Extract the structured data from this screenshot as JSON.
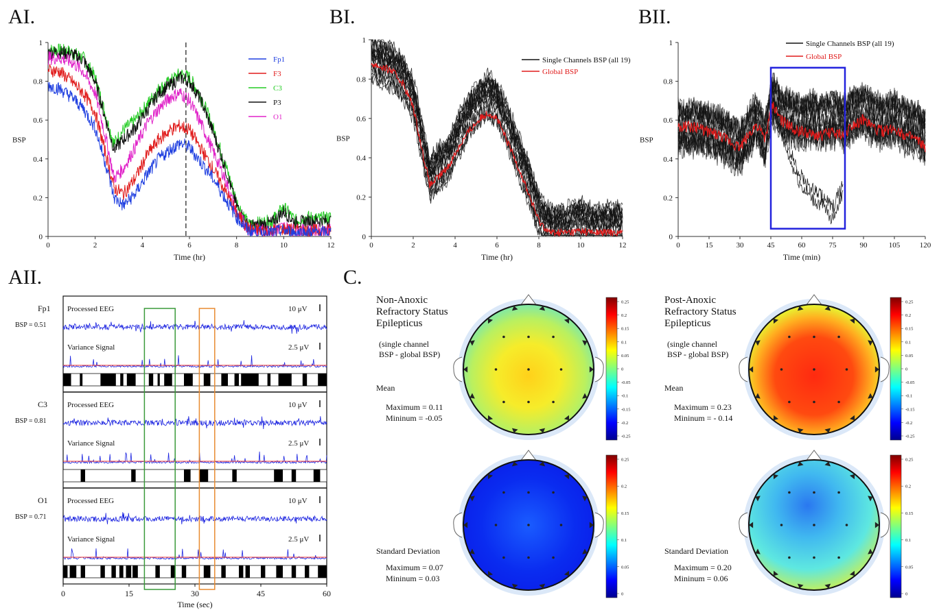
{
  "panel_labels": {
    "ai": "AI.",
    "bi": "BI.",
    "bii": "BII.",
    "aii": "AII.",
    "c": "C."
  },
  "chart_data": [
    {
      "id": "AI",
      "type": "line",
      "xlabel": "Time (hr)",
      "ylabel": "BSP",
      "xlim": [
        0,
        12
      ],
      "ylim": [
        0,
        1
      ],
      "xticks": [
        0,
        2,
        4,
        6,
        8,
        10,
        12
      ],
      "yticks": [
        0,
        0.2,
        0.4,
        0.6,
        0.8,
        1
      ],
      "xtick_labels": [
        "0",
        "2",
        "4",
        "6",
        "8",
        "10",
        "12"
      ],
      "ytick_labels": [
        "0",
        "0.2",
        "0.4",
        "0.6",
        "0.8",
        "1"
      ],
      "vline_x": 5.85,
      "legend": "top-right",
      "x": [
        0,
        0.5,
        1,
        1.5,
        2,
        2.5,
        2.8,
        3.2,
        3.7,
        4.2,
        4.7,
        5.2,
        5.6,
        6.0,
        6.5,
        7.0,
        7.5,
        8.0,
        8.5,
        9.0,
        9.5,
        10.0,
        10.5,
        11.0,
        11.5,
        12.0
      ],
      "series": [
        {
          "name": "Fp1",
          "color": "#1f3fe0",
          "values": [
            0.78,
            0.76,
            0.72,
            0.66,
            0.56,
            0.35,
            0.2,
            0.16,
            0.22,
            0.32,
            0.4,
            0.45,
            0.48,
            0.46,
            0.38,
            0.3,
            0.2,
            0.1,
            0.03,
            0.02,
            0.02,
            0.03,
            0.02,
            0.02,
            0.02,
            0.02
          ]
        },
        {
          "name": "F3",
          "color": "#e01a1a",
          "values": [
            0.86,
            0.85,
            0.8,
            0.74,
            0.64,
            0.4,
            0.25,
            0.22,
            0.3,
            0.42,
            0.5,
            0.55,
            0.57,
            0.55,
            0.45,
            0.35,
            0.24,
            0.12,
            0.04,
            0.03,
            0.03,
            0.04,
            0.03,
            0.03,
            0.03,
            0.03
          ]
        },
        {
          "name": "C3",
          "color": "#22cc22",
          "values": [
            0.96,
            0.96,
            0.95,
            0.92,
            0.82,
            0.6,
            0.48,
            0.55,
            0.6,
            0.68,
            0.76,
            0.8,
            0.84,
            0.82,
            0.72,
            0.56,
            0.38,
            0.18,
            0.06,
            0.07,
            0.08,
            0.15,
            0.08,
            0.1,
            0.09,
            0.1
          ]
        },
        {
          "name": "P3",
          "color": "#111111",
          "values": [
            0.95,
            0.95,
            0.94,
            0.91,
            0.8,
            0.58,
            0.45,
            0.5,
            0.56,
            0.65,
            0.74,
            0.78,
            0.82,
            0.8,
            0.7,
            0.54,
            0.36,
            0.16,
            0.05,
            0.06,
            0.07,
            0.13,
            0.07,
            0.08,
            0.08,
            0.08
          ]
        },
        {
          "name": "O1",
          "color": "#e022c8",
          "values": [
            0.92,
            0.92,
            0.9,
            0.85,
            0.74,
            0.48,
            0.3,
            0.35,
            0.46,
            0.58,
            0.66,
            0.72,
            0.74,
            0.7,
            0.58,
            0.44,
            0.3,
            0.12,
            0.04,
            0.03,
            0.03,
            0.05,
            0.03,
            0.03,
            0.03,
            0.03
          ]
        }
      ]
    },
    {
      "id": "BI",
      "type": "line",
      "xlabel": "Time (hr)",
      "ylabel": "BSP",
      "xlim": [
        0,
        12
      ],
      "ylim": [
        0,
        1
      ],
      "xticks": [
        0,
        2,
        4,
        6,
        8,
        10,
        12
      ],
      "yticks": [
        0,
        0.2,
        0.4,
        0.6,
        0.8,
        1
      ],
      "xtick_labels": [
        "0",
        "2",
        "4",
        "6",
        "8",
        "10",
        "12"
      ],
      "ytick_labels": [
        "0",
        "0.2",
        "0.4",
        "0.6",
        "0.8",
        "1"
      ],
      "legend": "top-right",
      "x": [
        0,
        0.5,
        1,
        1.5,
        2,
        2.5,
        2.8,
        3.2,
        3.7,
        4.2,
        4.7,
        5.2,
        5.6,
        6.0,
        6.5,
        7.0,
        7.5,
        8.0,
        8.5,
        9.0,
        9.5,
        10.0,
        10.5,
        11.0,
        11.5,
        12.0
      ],
      "series": [
        {
          "name": "Single Channels BSP (all 19)",
          "color": "#111111",
          "values": [
            0.9,
            0.88,
            0.86,
            0.8,
            0.7,
            0.45,
            0.3,
            0.35,
            0.4,
            0.52,
            0.62,
            0.68,
            0.72,
            0.68,
            0.56,
            0.42,
            0.28,
            0.12,
            0.04,
            0.04,
            0.05,
            0.08,
            0.04,
            0.05,
            0.05,
            0.05
          ]
        },
        {
          "name": "Global BSP",
          "color": "#e01a1a",
          "values": [
            0.88,
            0.86,
            0.84,
            0.78,
            0.66,
            0.4,
            0.26,
            0.3,
            0.36,
            0.46,
            0.54,
            0.6,
            0.63,
            0.6,
            0.48,
            0.36,
            0.22,
            0.08,
            0.02,
            0.02,
            0.02,
            0.03,
            0.02,
            0.02,
            0.02,
            0.02
          ]
        }
      ]
    },
    {
      "id": "BII",
      "type": "line",
      "xlabel": "Time (min)",
      "ylabel": "BSP",
      "xlim": [
        0,
        120
      ],
      "ylim": [
        0,
        1
      ],
      "xticks": [
        0,
        15,
        30,
        45,
        60,
        75,
        90,
        105,
        120
      ],
      "yticks": [
        0,
        0.2,
        0.4,
        0.6,
        0.8,
        1
      ],
      "xtick_labels": [
        "0",
        "15",
        "30",
        "45",
        "60",
        "75",
        "90",
        "105",
        "120"
      ],
      "ytick_labels": [
        "0",
        "0.2",
        "0.4",
        "0.6",
        "0.8",
        "1"
      ],
      "highlight_box": {
        "x": [
          45,
          81
        ],
        "y": [
          0.04,
          0.87
        ],
        "color": "#2222dd"
      },
      "legend": "top-right",
      "x": [
        0,
        10,
        20,
        30,
        38,
        42,
        46,
        50,
        55,
        60,
        65,
        70,
        75,
        80,
        85,
        90,
        95,
        100,
        105,
        110,
        115,
        120
      ],
      "series": [
        {
          "name": "Single Channels BSP (all 19)",
          "color": "#111111",
          "values": [
            0.55,
            0.55,
            0.52,
            0.45,
            0.6,
            0.48,
            0.7,
            0.62,
            0.6,
            0.58,
            0.6,
            0.58,
            0.6,
            0.58,
            0.62,
            0.64,
            0.6,
            0.58,
            0.6,
            0.56,
            0.55,
            0.5
          ]
        },
        {
          "name": "Global BSP",
          "color": "#e01a1a",
          "values": [
            0.57,
            0.56,
            0.52,
            0.46,
            0.58,
            0.5,
            0.68,
            0.6,
            0.56,
            0.54,
            0.52,
            0.52,
            0.54,
            0.52,
            0.58,
            0.6,
            0.56,
            0.54,
            0.56,
            0.52,
            0.5,
            0.46
          ]
        }
      ],
      "outlier_series": {
        "color": "#111111",
        "x": [
          45,
          50,
          55,
          60,
          65,
          70,
          75,
          80
        ],
        "values": [
          0.75,
          0.55,
          0.4,
          0.28,
          0.22,
          0.18,
          0.12,
          0.25
        ]
      }
    },
    {
      "id": "AII",
      "type": "line",
      "xlabel": "Time (sec)",
      "xlim": [
        0,
        60
      ],
      "xticks": [
        0,
        15,
        30,
        45,
        60
      ],
      "xtick_labels": [
        "0",
        "15",
        "30",
        "45",
        "60"
      ],
      "channels": [
        {
          "name": "Fp1",
          "bsp": "BSP = 0.51",
          "eeg_label": "Processed EEG",
          "eeg_scale": "10 μV",
          "var_label": "Variance Signal",
          "var_scale": "2.5 μV"
        },
        {
          "name": "C3",
          "bsp": "BSP = 0.81",
          "eeg_label": "Processed EEG",
          "eeg_scale": "10 μV",
          "var_label": "Variance Signal",
          "var_scale": "2.5 μV"
        },
        {
          "name": "O1",
          "bsp": "BSP = 0.71",
          "eeg_label": "Processed EEG",
          "eeg_scale": "10 μV",
          "var_label": "Variance Signal",
          "var_scale": "2.5 μV"
        }
      ],
      "green_box_x": [
        18.5,
        25.5
      ],
      "orange_box_x": [
        31,
        34.5
      ],
      "suppression_blocks": [
        [
          [
            0,
            1.8
          ],
          [
            3.8,
            4.4
          ],
          [
            8.5,
            12
          ],
          [
            13,
            13.7
          ],
          [
            14.5,
            16.5
          ],
          [
            19.5,
            20.5
          ],
          [
            21.5,
            22
          ],
          [
            23,
            24.8
          ],
          [
            27.5,
            29.5
          ],
          [
            32,
            33.5
          ],
          [
            36,
            37.5
          ],
          [
            39,
            40
          ],
          [
            40.5,
            44.5
          ],
          [
            46.5,
            47.2
          ],
          [
            49,
            52
          ],
          [
            54.5,
            55.5
          ],
          [
            58,
            60
          ]
        ],
        [
          [
            4,
            5
          ],
          [
            15.5,
            16.5
          ],
          [
            27.5,
            29
          ],
          [
            31,
            33
          ],
          [
            38.5,
            39.5
          ],
          [
            48,
            50
          ],
          [
            52,
            53
          ],
          [
            57,
            58.5
          ]
        ],
        [
          [
            0,
            1
          ],
          [
            1.5,
            3
          ],
          [
            4,
            5
          ],
          [
            8.5,
            9.5
          ],
          [
            11,
            12
          ],
          [
            12.8,
            13.7
          ],
          [
            14.3,
            15.5
          ],
          [
            15.8,
            17
          ],
          [
            21,
            22
          ],
          [
            24.5,
            25.5
          ],
          [
            27,
            28
          ],
          [
            32,
            33.5
          ],
          [
            36,
            37
          ],
          [
            40,
            41
          ],
          [
            41.5,
            42.5
          ],
          [
            45,
            46
          ],
          [
            48.5,
            50
          ],
          [
            52,
            53
          ],
          [
            55,
            56
          ],
          [
            58,
            60
          ]
        ]
      ]
    }
  ],
  "topomaps": {
    "scale_ticks": [
      "0.25",
      "0.2",
      "0.15",
      "0.1",
      "0.05",
      "0",
      "-0.05",
      "-0.1",
      "-0.15",
      "-0.2",
      "-0.25"
    ],
    "sd_scale_ticks": [
      "0.25",
      "0.2",
      "0.15",
      "0.1",
      "0.05",
      "0"
    ],
    "left_title": "Non-Anoxic\nRefractory Status\nEpilepticus",
    "right_title": "Post-Anoxic\nRefractory Status\nEpilepticus",
    "subtitle": "(single channel\nBSP - global BSP)",
    "mean_label": "Mean",
    "sd_label": "Standard Deviation",
    "left_mean_max": "Maximum = 0.11",
    "left_mean_min": "Mininum = -0.05",
    "right_mean_max": "Maximum = 0.23",
    "right_mean_min": "Mininum = - 0.14",
    "left_sd_max": "Maximum = 0.07",
    "left_sd_min": "Mininum = 0.03",
    "right_sd_max": "Maximum = 0.20",
    "right_sd_min": "Mininum = 0.06"
  }
}
